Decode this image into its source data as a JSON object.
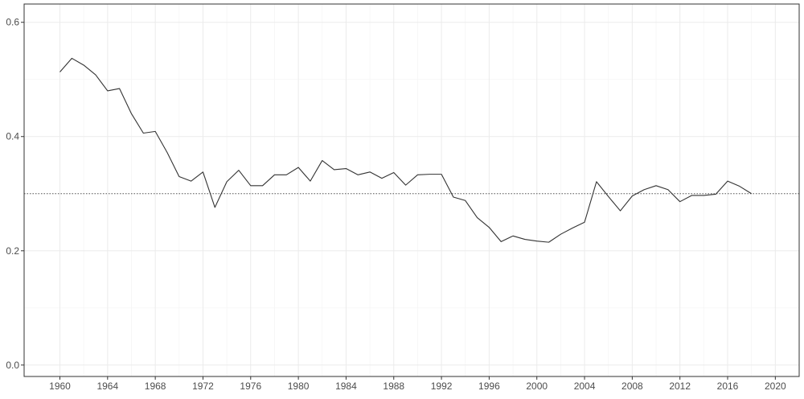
{
  "chart_data": {
    "type": "line",
    "title": "",
    "xlabel": "",
    "ylabel": "",
    "xlim": [
      1957,
      2022
    ],
    "ylim": [
      -0.02,
      0.632
    ],
    "x_ticks": [
      1960,
      1964,
      1968,
      1972,
      1976,
      1980,
      1984,
      1988,
      1992,
      1996,
      2000,
      2004,
      2008,
      2012,
      2016,
      2020
    ],
    "y_ticks": [
      0.0,
      0.2,
      0.4,
      0.6
    ],
    "y_tick_labels": [
      "0.0",
      "0.2",
      "0.4",
      "0.6"
    ],
    "grid": true,
    "reference_line": {
      "y": 0.3,
      "style": "dotted"
    },
    "series": [
      {
        "line_color": "#333333",
        "x": [
          1960,
          1961,
          1962,
          1963,
          1964,
          1965,
          1966,
          1967,
          1968,
          1969,
          1970,
          1971,
          1972,
          1973,
          1974,
          1975,
          1976,
          1977,
          1978,
          1979,
          1980,
          1981,
          1982,
          1983,
          1984,
          1985,
          1986,
          1987,
          1988,
          1989,
          1990,
          1991,
          1992,
          1993,
          1994,
          1995,
          1996,
          1997,
          1998,
          1999,
          2000,
          2001,
          2002,
          2003,
          2004,
          2005,
          2006,
          2007,
          2008,
          2009,
          2010,
          2011,
          2012,
          2013,
          2014,
          2015,
          2016,
          2017,
          2018
        ],
        "y": [
          0.513,
          0.537,
          0.525,
          0.508,
          0.48,
          0.484,
          0.44,
          0.406,
          0.409,
          0.372,
          0.33,
          0.322,
          0.338,
          0.276,
          0.321,
          0.341,
          0.314,
          0.314,
          0.333,
          0.333,
          0.346,
          0.322,
          0.358,
          0.342,
          0.344,
          0.333,
          0.338,
          0.327,
          0.337,
          0.315,
          0.333,
          0.334,
          0.334,
          0.294,
          0.288,
          0.258,
          0.241,
          0.216,
          0.226,
          0.22,
          0.217,
          0.215,
          0.229,
          0.24,
          0.25,
          0.321,
          0.295,
          0.27,
          0.296,
          0.307,
          0.314,
          0.307,
          0.286,
          0.297,
          0.297,
          0.299,
          0.322,
          0.313,
          0.3
        ]
      }
    ]
  },
  "colors": {
    "panel_border": "#333333",
    "grid_major": "#ebebeb",
    "grid_minor": "#f5f5f5",
    "reference_line": "#555555",
    "tick_text": "#4d4d4d"
  }
}
